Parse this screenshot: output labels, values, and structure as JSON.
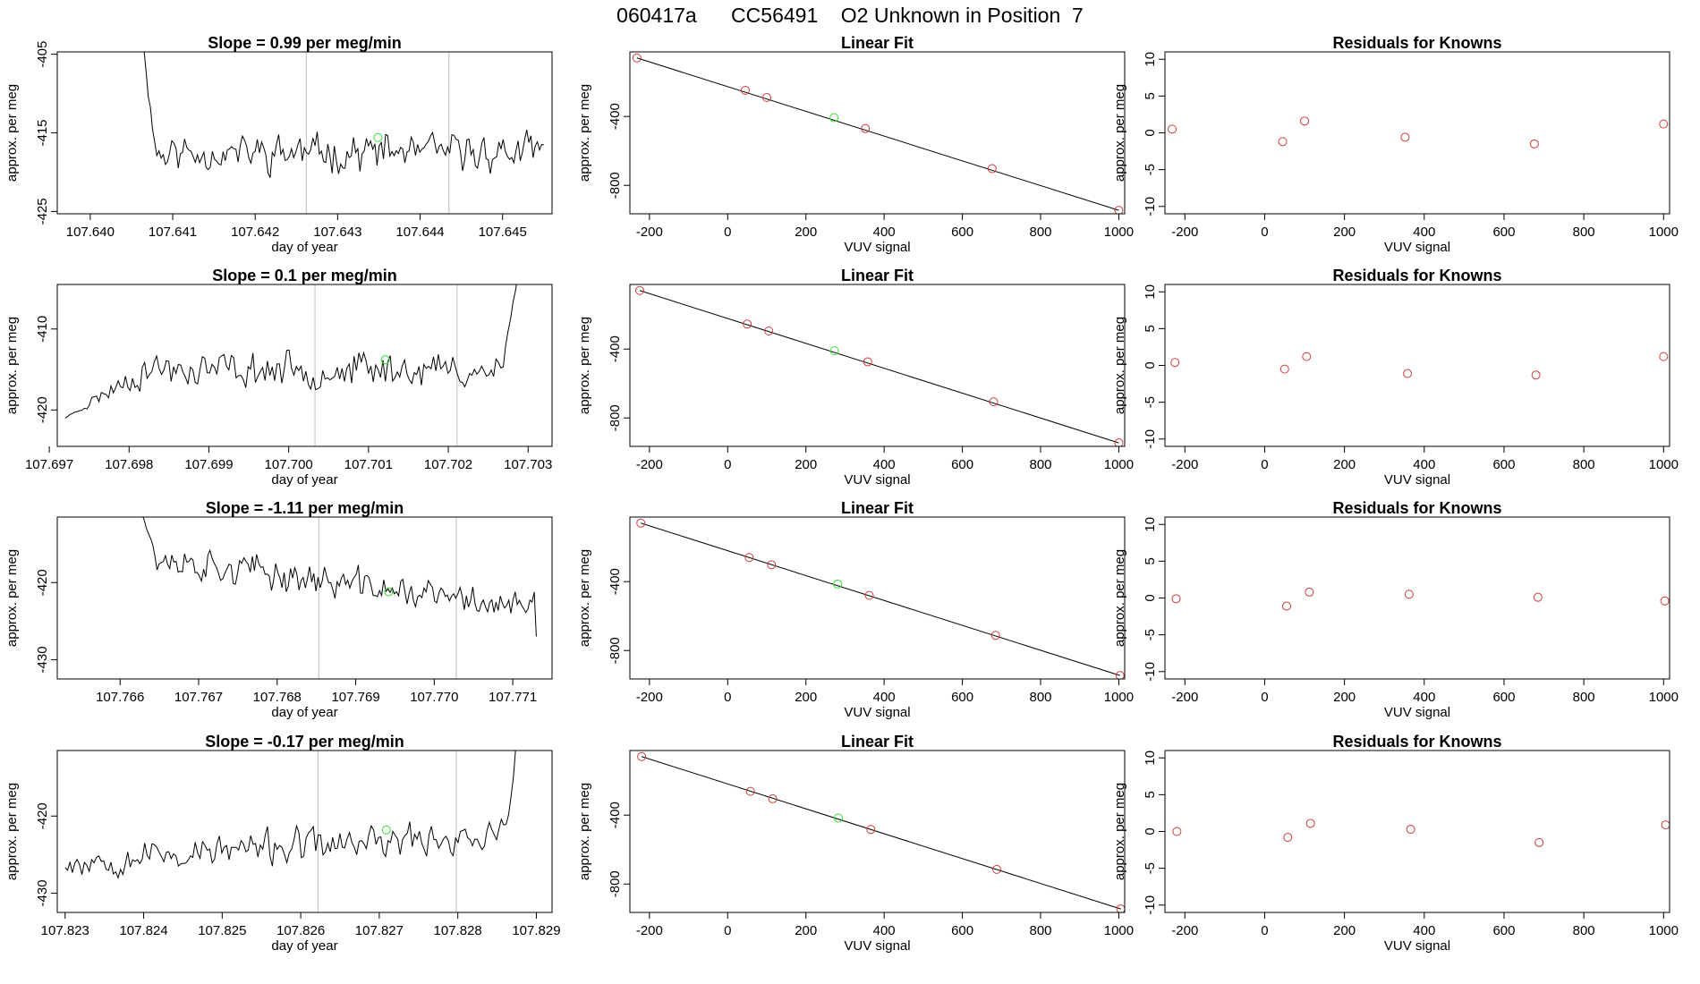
{
  "page_title": "060417a      CC56491    O2 Unknown in Position  7",
  "colors": {
    "trace": "#000000",
    "known": "#cd3b3b",
    "unknown": "#33dd33",
    "vline": "#bebebe",
    "axis": "#000000"
  },
  "chart_data": [
    {
      "type": "line",
      "row": 0,
      "col": 0,
      "title": "Slope =  0.99  per meg/min",
      "xlabel": "day of year",
      "ylabel": "approx. per meg",
      "xlim": [
        107.6396,
        107.6456
      ],
      "ylim": [
        -425.3,
        -404.7
      ],
      "xticks": [
        107.64,
        107.641,
        107.642,
        107.643,
        107.644,
        107.645
      ],
      "xtick_labels": [
        "107.640",
        "107.641",
        "107.642",
        "107.643",
        "107.644",
        "107.645"
      ],
      "yticks": [
        -405,
        -415,
        -425
      ],
      "ytick_labels": [
        "-405",
        "-415",
        "-425"
      ],
      "trace": {
        "t0": 107.6406,
        "t1": 107.6455,
        "base": -417.5,
        "amp": 2.6,
        "seed": 11,
        "start_val": -400,
        "start_frac": 0.04,
        "end_val": -416.5,
        "end_frac": 0.0,
        "drift": 0.0
      },
      "vlines": [
        107.64262,
        107.64435
      ],
      "unknown_point": {
        "x": 107.64349,
        "y": -415.6
      }
    },
    {
      "type": "scatter",
      "row": 0,
      "col": 1,
      "title": "Linear Fit",
      "xlabel": "VUV signal",
      "ylabel": "approx. per meg",
      "xlim": [
        -250,
        1015
      ],
      "ylim": [
        -965,
        -25
      ],
      "xticks": [
        -200,
        0,
        200,
        400,
        600,
        800,
        1000
      ],
      "xtick_labels": [
        "-200",
        "0",
        "200",
        "400",
        "600",
        "800",
        "1000"
      ],
      "yticks": [
        -400,
        -800
      ],
      "ytick_labels": [
        "-400",
        "-800"
      ],
      "fit_line": {
        "x": [
          -232,
          1000
        ],
        "y": [
          -60,
          -945
        ]
      },
      "known_x": [
        -232,
        45,
        100,
        352,
        676,
        1000
      ],
      "known_y": [
        -60,
        -248,
        -290,
        -470,
        -703,
        -945
      ],
      "unknown_point": {
        "x": 272,
        "y": -407
      }
    },
    {
      "type": "scatter",
      "row": 0,
      "col": 2,
      "title": "Residuals for Knowns",
      "xlabel": "VUV signal",
      "ylabel": "approx. per meg",
      "xlim": [
        -250,
        1015
      ],
      "ylim": [
        -11,
        11
      ],
      "xticks": [
        -200,
        0,
        200,
        400,
        600,
        800,
        1000
      ],
      "xtick_labels": [
        "-200",
        "0",
        "200",
        "400",
        "600",
        "800",
        "1000"
      ],
      "yticks": [
        10,
        5,
        0,
        -5,
        -10
      ],
      "ytick_labels": [
        "10",
        "5",
        "0",
        "-5",
        "-10"
      ],
      "known_x": [
        -232,
        45,
        100,
        352,
        676,
        1000
      ],
      "residuals": [
        0.5,
        -1.2,
        1.6,
        -0.6,
        -1.5,
        1.2
      ]
    },
    {
      "type": "line",
      "row": 1,
      "col": 0,
      "title": "Slope =  0.1  per meg/min",
      "xlabel": "day of year",
      "ylabel": "approx. per meg",
      "xlim": [
        107.6971,
        107.7033
      ],
      "ylim": [
        -424.5,
        -404.5
      ],
      "xticks": [
        107.697,
        107.698,
        107.699,
        107.7,
        107.701,
        107.702,
        107.703
      ],
      "xtick_labels": [
        "107.697",
        "107.698",
        "107.699",
        "107.700",
        "107.701",
        "107.702",
        "107.703"
      ],
      "yticks": [
        -410,
        -420
      ],
      "ytick_labels": [
        "-410",
        "-420"
      ],
      "trace": {
        "t0": 107.6972,
        "t1": 107.7029,
        "base": -415.0,
        "amp": 2.4,
        "seed": 23,
        "start_val": -421,
        "start_frac": 0.17,
        "end_val": -402,
        "end_frac": 0.04,
        "drift": 0.0
      },
      "vlines": [
        107.70033,
        107.70211
      ],
      "unknown_point": {
        "x": 107.70121,
        "y": -413.8
      }
    },
    {
      "type": "scatter",
      "row": 1,
      "col": 1,
      "title": "Linear Fit",
      "xlabel": "VUV signal",
      "ylabel": "approx. per meg",
      "xlim": [
        -250,
        1015
      ],
      "ylim": [
        -965,
        -25
      ],
      "xticks": [
        -200,
        0,
        200,
        400,
        600,
        800,
        1000
      ],
      "xtick_labels": [
        "-200",
        "0",
        "200",
        "400",
        "600",
        "800",
        "1000"
      ],
      "yticks": [
        -400,
        -800
      ],
      "ytick_labels": [
        "-400",
        "-800"
      ],
      "fit_line": {
        "x": [
          -225,
          1000
        ],
        "y": [
          -60,
          -945
        ]
      },
      "known_x": [
        -225,
        50,
        105,
        358,
        680,
        1000
      ],
      "known_y": [
        -60,
        -255,
        -295,
        -474,
        -706,
        -945
      ],
      "unknown_point": {
        "x": 273,
        "y": -410
      }
    },
    {
      "type": "scatter",
      "row": 1,
      "col": 2,
      "title": "Residuals for Knowns",
      "xlabel": "VUV signal",
      "ylabel": "approx. per meg",
      "xlim": [
        -250,
        1015
      ],
      "ylim": [
        -11,
        11
      ],
      "xticks": [
        -200,
        0,
        200,
        400,
        600,
        800,
        1000
      ],
      "xtick_labels": [
        "-200",
        "0",
        "200",
        "400",
        "600",
        "800",
        "1000"
      ],
      "yticks": [
        10,
        5,
        0,
        -5,
        -10
      ],
      "ytick_labels": [
        "10",
        "5",
        "0",
        "-5",
        "-10"
      ],
      "known_x": [
        -225,
        50,
        105,
        358,
        680,
        1000
      ],
      "residuals": [
        0.4,
        -0.5,
        1.2,
        -1.1,
        -1.3,
        1.2
      ]
    },
    {
      "type": "line",
      "row": 2,
      "col": 0,
      "title": "Slope =  -1.11  per meg/min",
      "xlabel": "day of year",
      "ylabel": "approx. per meg",
      "xlim": [
        107.7652,
        107.7715
      ],
      "ylim": [
        -432.5,
        -411.5
      ],
      "xticks": [
        107.766,
        107.767,
        107.768,
        107.769,
        107.77,
        107.771
      ],
      "xtick_labels": [
        "107.766",
        "107.767",
        "107.768",
        "107.769",
        "107.770",
        "107.771"
      ],
      "yticks": [
        -420,
        -430
      ],
      "ytick_labels": [
        "-420",
        "-430"
      ],
      "trace": {
        "t0": 107.7662,
        "t1": 107.7713,
        "base": -420.0,
        "amp": 2.3,
        "seed": 37,
        "start_val": -408,
        "start_frac": 0.05,
        "end_val": -427,
        "end_frac": 0.0,
        "drift": -7.0
      },
      "vlines": [
        107.76853,
        107.77028
      ],
      "unknown_point": {
        "x": 107.76942,
        "y": -421.2
      }
    },
    {
      "type": "scatter",
      "row": 2,
      "col": 1,
      "title": "Linear Fit",
      "xlabel": "VUV signal",
      "ylabel": "approx. per meg",
      "xlim": [
        -250,
        1015
      ],
      "ylim": [
        -965,
        -25
      ],
      "xticks": [
        -200,
        0,
        200,
        400,
        600,
        800,
        1000
      ],
      "xtick_labels": [
        "-200",
        "0",
        "200",
        "400",
        "600",
        "800",
        "1000"
      ],
      "yticks": [
        -400,
        -800
      ],
      "ytick_labels": [
        "-400",
        "-800"
      ],
      "fit_line": {
        "x": [
          -222,
          1003
        ],
        "y": [
          -60,
          -945
        ]
      },
      "known_x": [
        -222,
        55,
        112,
        362,
        685,
        1003
      ],
      "known_y": [
        -60,
        -260,
        -302,
        -480,
        -712,
        -945
      ],
      "unknown_point": {
        "x": 281,
        "y": -414
      }
    },
    {
      "type": "scatter",
      "row": 2,
      "col": 2,
      "title": "Residuals for Knowns",
      "xlabel": "VUV signal",
      "ylabel": "approx. per meg",
      "xlim": [
        -250,
        1015
      ],
      "ylim": [
        -11,
        11
      ],
      "xticks": [
        -200,
        0,
        200,
        400,
        600,
        800,
        1000
      ],
      "xtick_labels": [
        "-200",
        "0",
        "200",
        "400",
        "600",
        "800",
        "1000"
      ],
      "yticks": [
        10,
        5,
        0,
        -5,
        -10
      ],
      "ytick_labels": [
        "10",
        "5",
        "0",
        "-5",
        "-10"
      ],
      "known_x": [
        -222,
        55,
        112,
        362,
        685,
        1003
      ],
      "residuals": [
        -0.1,
        -1.1,
        0.8,
        0.5,
        0.1,
        -0.4
      ]
    },
    {
      "type": "line",
      "row": 3,
      "col": 0,
      "title": "Slope =  -0.17  per meg/min",
      "xlabel": "day of year",
      "ylabel": "approx. per meg",
      "xlim": [
        107.8229,
        107.8292
      ],
      "ylim": [
        -432.5,
        -411.5
      ],
      "xticks": [
        107.823,
        107.824,
        107.825,
        107.826,
        107.827,
        107.828,
        107.829
      ],
      "xtick_labels": [
        "107.823",
        "107.824",
        "107.825",
        "107.826",
        "107.827",
        "107.828",
        "107.829"
      ],
      "yticks": [
        -420,
        -430
      ],
      "ytick_labels": [
        "-420",
        "-430"
      ],
      "trace": {
        "t0": 107.823,
        "t1": 107.8288,
        "base": -424.0,
        "amp": 2.4,
        "seed": 53,
        "start_val": -426,
        "start_frac": 0.0,
        "end_val": -405,
        "end_frac": 0.03,
        "drift": 3.5
      },
      "vlines": [
        107.82622,
        107.82798
      ],
      "unknown_point": {
        "x": 107.82709,
        "y": -421.8
      }
    },
    {
      "type": "scatter",
      "row": 3,
      "col": 1,
      "title": "Linear Fit",
      "xlabel": "VUV signal",
      "ylabel": "approx. per meg",
      "xlim": [
        -250,
        1015
      ],
      "ylim": [
        -965,
        -25
      ],
      "xticks": [
        -200,
        0,
        200,
        400,
        600,
        800,
        1000
      ],
      "xtick_labels": [
        "-200",
        "0",
        "200",
        "400",
        "600",
        "800",
        "1000"
      ],
      "yticks": [
        -400,
        -800
      ],
      "ytick_labels": [
        "-400",
        "-800"
      ],
      "fit_line": {
        "x": [
          -220,
          1005
        ],
        "y": [
          -60,
          -945
        ]
      },
      "known_x": [
        -220,
        58,
        115,
        366,
        688,
        1005
      ],
      "known_y": [
        -60,
        -262,
        -305,
        -483,
        -715,
        -945
      ],
      "unknown_point": {
        "x": 283,
        "y": -417
      }
    },
    {
      "type": "scatter",
      "row": 3,
      "col": 2,
      "title": "Residuals for Knowns",
      "xlabel": "VUV signal",
      "ylabel": "approx. per meg",
      "xlim": [
        -250,
        1015
      ],
      "ylim": [
        -11,
        11
      ],
      "xticks": [
        -200,
        0,
        200,
        400,
        600,
        800,
        1000
      ],
      "xtick_labels": [
        "-200",
        "0",
        "200",
        "400",
        "600",
        "800",
        "1000"
      ],
      "yticks": [
        10,
        5,
        0,
        -5,
        -10
      ],
      "ytick_labels": [
        "10",
        "5",
        "0",
        "-5",
        "-10"
      ],
      "known_x": [
        -220,
        58,
        115,
        366,
        688,
        1005
      ],
      "residuals": [
        0.0,
        -0.8,
        1.1,
        0.3,
        -1.5,
        0.9
      ]
    }
  ]
}
